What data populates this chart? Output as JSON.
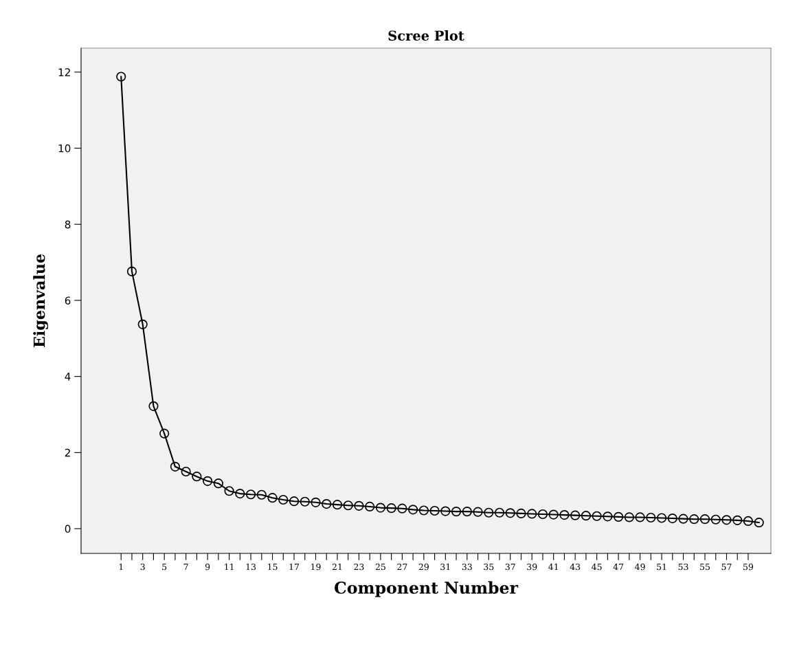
{
  "chart_data": {
    "type": "line",
    "title": "Scree Plot",
    "xlabel": "Component Number",
    "ylabel": "Eigenvalue",
    "x": [
      1,
      2,
      3,
      4,
      5,
      6,
      7,
      8,
      9,
      10,
      11,
      12,
      13,
      14,
      15,
      16,
      17,
      18,
      19,
      20,
      21,
      22,
      23,
      24,
      25,
      26,
      27,
      28,
      29,
      30,
      31,
      32,
      33,
      34,
      35,
      36,
      37,
      38,
      39,
      40,
      41,
      42,
      43,
      44,
      45,
      46,
      47,
      48,
      49,
      50,
      51,
      52,
      53,
      54,
      55,
      56,
      57,
      58,
      59,
      60
    ],
    "values": [
      11.88,
      6.76,
      5.37,
      3.22,
      2.5,
      1.63,
      1.5,
      1.37,
      1.25,
      1.19,
      0.99,
      0.92,
      0.9,
      0.89,
      0.81,
      0.76,
      0.72,
      0.71,
      0.69,
      0.65,
      0.63,
      0.61,
      0.6,
      0.58,
      0.55,
      0.54,
      0.53,
      0.5,
      0.48,
      0.47,
      0.46,
      0.45,
      0.45,
      0.44,
      0.42,
      0.42,
      0.41,
      0.4,
      0.39,
      0.38,
      0.37,
      0.36,
      0.35,
      0.34,
      0.33,
      0.32,
      0.31,
      0.3,
      0.3,
      0.29,
      0.28,
      0.27,
      0.26,
      0.25,
      0.25,
      0.24,
      0.23,
      0.22,
      0.2,
      0.16
    ],
    "color": "#000000",
    "marker": "circle",
    "line_style": "solid",
    "grid": false,
    "xlim": [
      -2.7,
      61.1
    ],
    "xticks": [
      1,
      {
        "value": 2,
        "label": null
      },
      3,
      {
        "value": 4,
        "label": null
      },
      5,
      {
        "value": 6,
        "label": null
      },
      7,
      {
        "value": 8,
        "label": null
      },
      9,
      {
        "value": 10,
        "label": null
      },
      11,
      {
        "value": 12,
        "label": null
      },
      13,
      {
        "value": 14,
        "label": null
      },
      15,
      {
        "value": 16,
        "label": null
      },
      17,
      {
        "value": 18,
        "label": null
      },
      19,
      {
        "value": 20,
        "label": null
      },
      21,
      {
        "value": 22,
        "label": null
      },
      23,
      {
        "value": 24,
        "label": null
      },
      25,
      {
        "value": 26,
        "label": null
      },
      27,
      {
        "value": 28,
        "label": null
      },
      29,
      {
        "value": 30,
        "label": null
      },
      31,
      {
        "value": 32,
        "label": null
      },
      33,
      {
        "value": 34,
        "label": null
      },
      35,
      {
        "value": 36,
        "label": null
      },
      37,
      {
        "value": 38,
        "label": null
      },
      39,
      {
        "value": 40,
        "label": null
      },
      41,
      {
        "value": 42,
        "label": null
      },
      43,
      {
        "value": 44,
        "label": null
      },
      45,
      {
        "value": 46,
        "label": null
      },
      47,
      {
        "value": 48,
        "label": null
      },
      49,
      {
        "value": 50,
        "label": null
      },
      51,
      {
        "value": 52,
        "label": null
      },
      53,
      {
        "value": 54,
        "label": null
      },
      55,
      {
        "value": 56,
        "label": null
      },
      57,
      {
        "value": 58,
        "label": null
      },
      59
    ],
    "ylim": [
      -0.65,
      12.63
    ],
    "yticks": [
      0,
      2,
      4,
      6,
      8,
      10,
      12
    ]
  }
}
